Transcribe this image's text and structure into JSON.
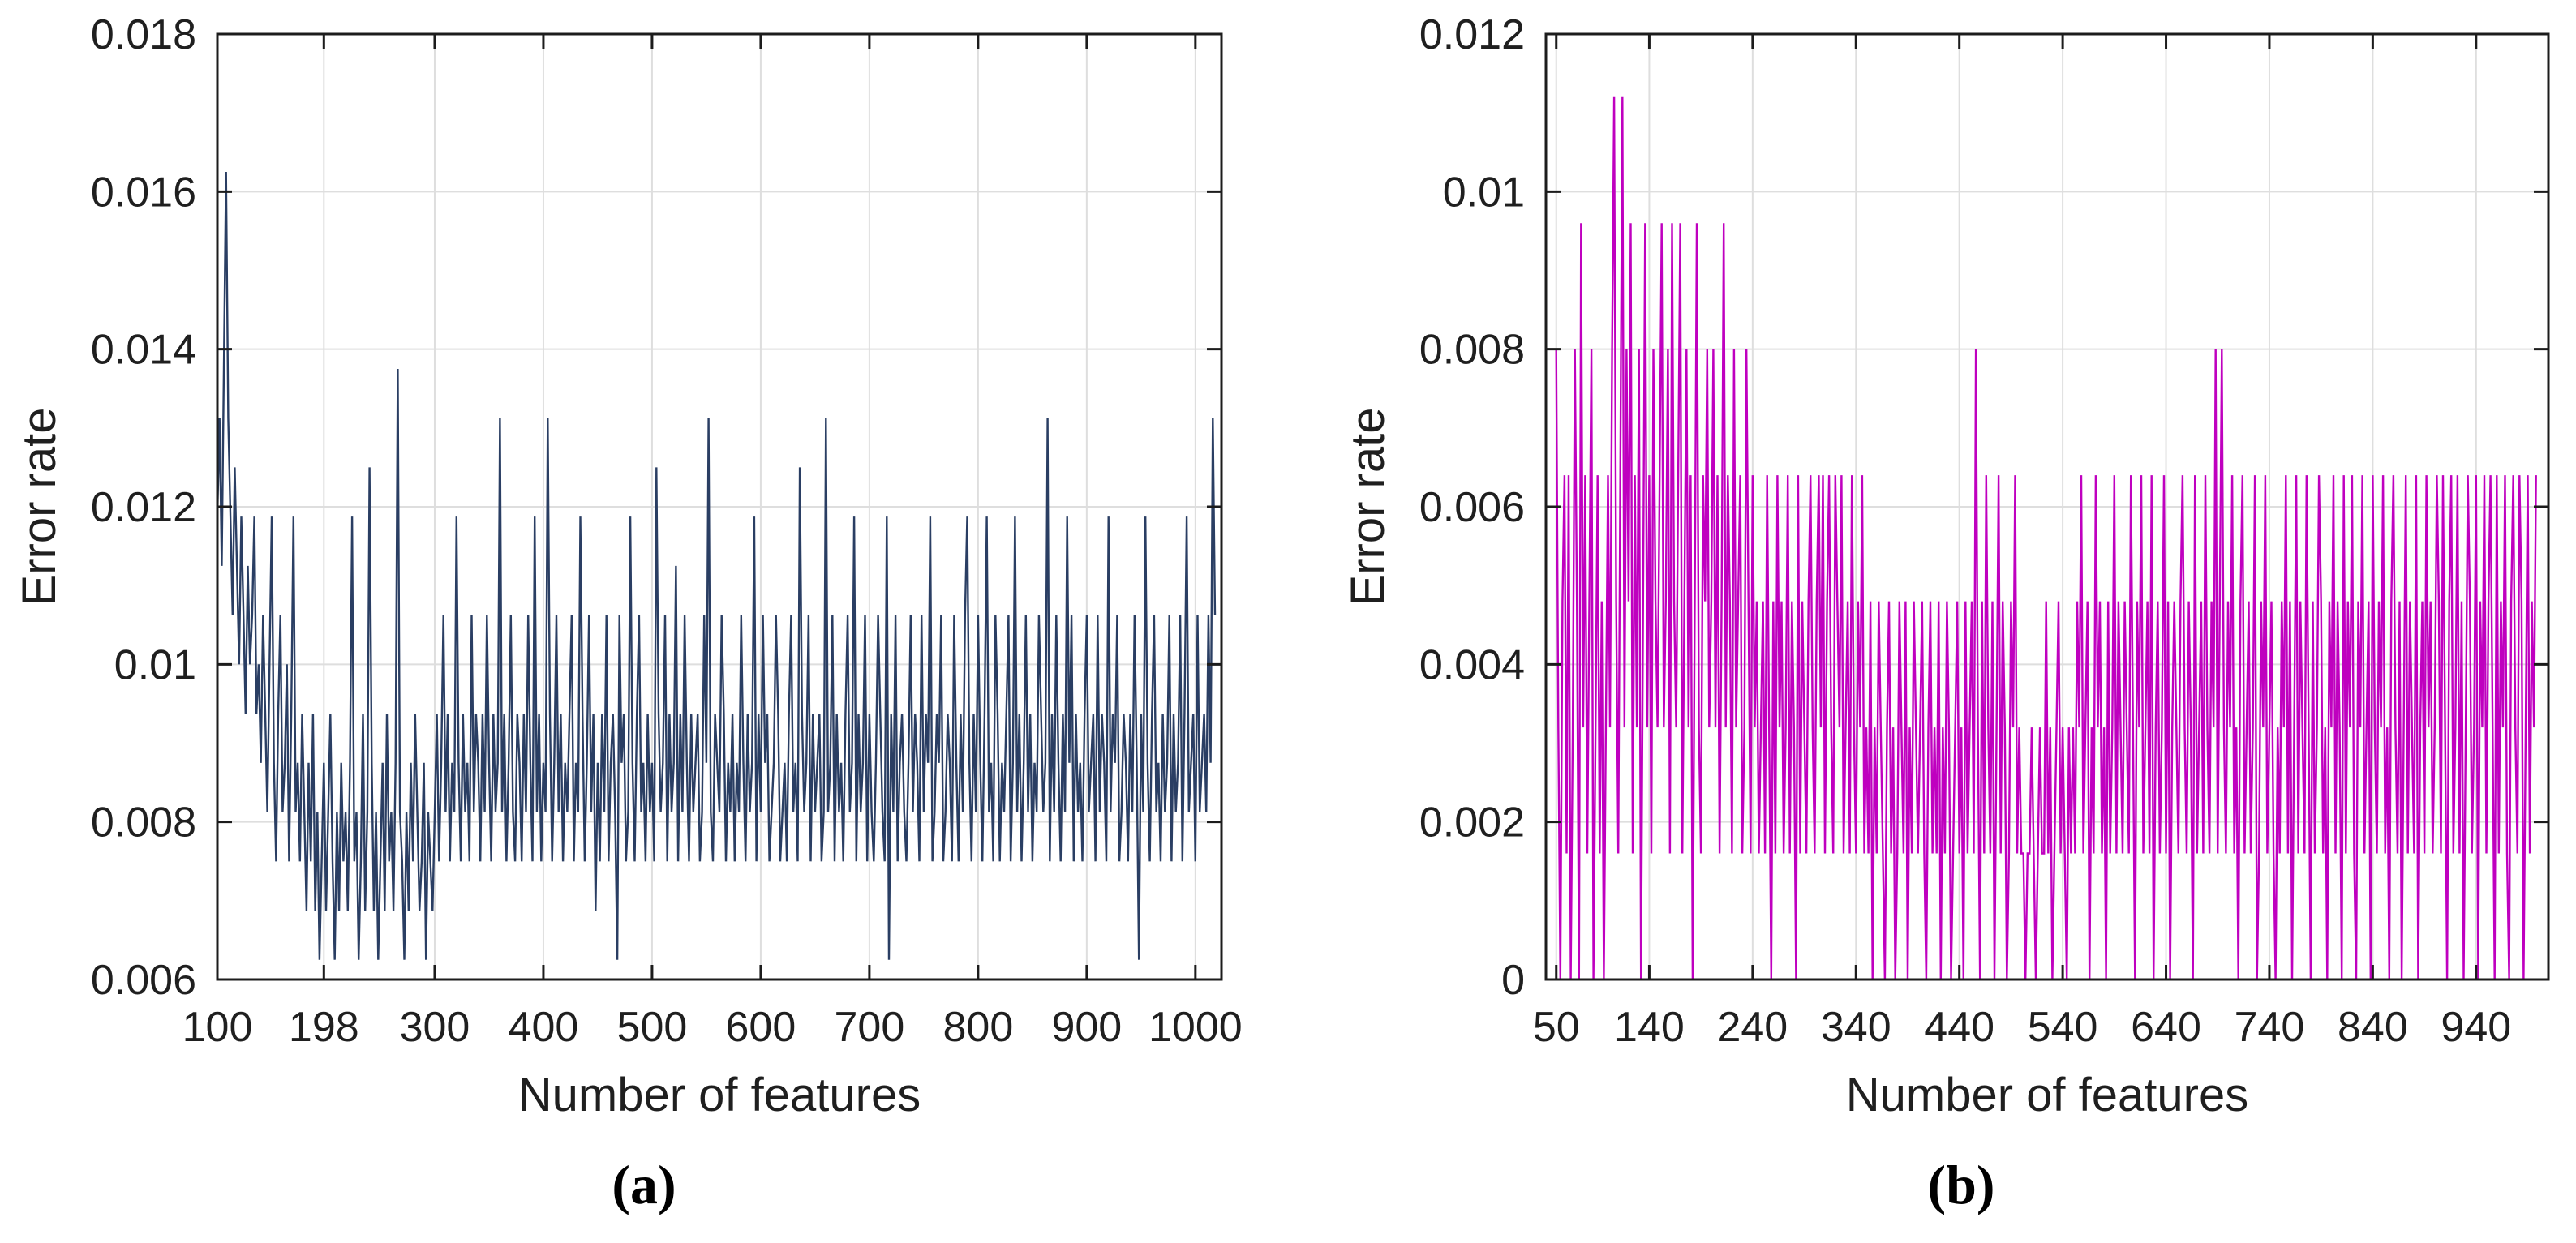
{
  "figure": {
    "background": "#ffffff",
    "panels": [
      {
        "id": "a",
        "caption": "(a)",
        "xlabel": "Number of features",
        "ylabel": "Error rate"
      },
      {
        "id": "b",
        "caption": "(b)",
        "xlabel": "Number of features",
        "ylabel": "Error rate"
      }
    ]
  },
  "colors": {
    "axis": "#1c1c1c",
    "grid": "#dedede",
    "tick_text": "#1f1f1f",
    "series_a": "#2a3e63",
    "series_b": "#bf00bf"
  },
  "chart_data": [
    {
      "type": "line",
      "title": "",
      "xlabel": "Number of features",
      "ylabel": "Error rate",
      "legend": null,
      "grid": true,
      "line_color": "#2a3e63",
      "xlim": [
        100,
        1024
      ],
      "ylim": [
        0.006,
        0.018
      ],
      "xticks": [
        100,
        198,
        300,
        400,
        500,
        600,
        700,
        800,
        900,
        1000
      ],
      "xtick_labels": [
        "100",
        "198",
        "300",
        "400",
        "500",
        "600",
        "700",
        "800",
        "900",
        "1000"
      ],
      "yticks": [
        0.006,
        0.008,
        0.01,
        0.012,
        0.014,
        0.016,
        0.018
      ],
      "ytick_labels": [
        "0.006",
        "0.008",
        "0.01",
        "0.012",
        "0.014",
        "0.016",
        "0.018"
      ],
      "series": {
        "name": "error-rate-vs-number-of-features",
        "x_start": 100,
        "x_step": 2,
        "denominator": 1600,
        "counts": [
          19,
          21,
          18,
          22,
          26,
          21,
          19,
          17,
          20,
          18,
          16,
          19,
          17,
          15,
          18,
          16,
          17,
          19,
          15,
          16,
          14,
          17,
          15,
          13,
          16,
          19,
          14,
          12,
          15,
          17,
          13,
          14,
          16,
          12,
          15,
          19,
          13,
          14,
          12,
          15,
          13,
          11,
          14,
          12,
          15,
          11,
          13,
          10,
          12,
          14,
          11,
          13,
          15,
          12,
          10,
          13,
          11,
          14,
          12,
          13,
          11,
          14,
          19,
          12,
          13,
          10,
          12,
          15,
          11,
          13,
          20,
          14,
          11,
          13,
          10,
          12,
          14,
          11,
          15,
          12,
          13,
          11,
          14,
          22,
          13,
          12,
          10,
          13,
          11,
          14,
          12,
          15,
          13,
          11,
          12,
          14,
          10,
          13,
          12,
          11,
          13,
          15,
          12,
          14,
          17,
          13,
          15,
          12,
          14,
          13,
          19,
          14,
          12,
          15,
          13,
          14,
          12,
          17,
          13,
          15,
          14,
          12,
          15,
          13,
          17,
          14,
          12,
          15,
          13,
          14,
          21,
          13,
          15,
          12,
          14,
          17,
          13,
          12,
          15,
          14,
          12,
          15,
          13,
          17,
          14,
          12,
          19,
          13,
          15,
          12,
          14,
          13,
          21,
          15,
          12,
          14,
          17,
          13,
          15,
          12,
          14,
          13,
          15,
          17,
          12,
          14,
          13,
          19,
          15,
          12,
          14,
          17,
          13,
          15,
          11,
          14,
          12,
          15,
          13,
          17,
          12,
          14,
          15,
          13,
          10,
          17,
          14,
          15,
          12,
          13,
          19,
          14,
          12,
          15,
          17,
          13,
          14,
          12,
          15,
          13,
          14,
          12,
          20,
          15,
          13,
          14,
          17,
          12,
          15,
          13,
          14,
          18,
          12,
          15,
          13,
          17,
          14,
          12,
          15,
          13,
          14,
          15,
          12,
          13,
          17,
          14,
          21,
          13,
          12,
          15,
          14,
          13,
          17,
          15,
          12,
          14,
          13,
          15,
          12,
          14,
          13,
          17,
          14,
          12,
          15,
          13,
          14,
          19,
          12,
          15,
          13,
          17,
          14,
          15,
          12,
          13,
          14,
          17,
          15,
          12,
          13,
          14,
          12,
          15,
          17,
          13,
          14,
          12,
          20,
          15,
          13,
          14,
          17,
          12,
          15,
          13,
          14,
          15,
          12,
          13,
          21,
          13,
          14,
          17,
          12,
          15,
          13,
          14,
          12,
          15,
          17,
          13,
          14,
          19,
          12,
          15,
          13,
          14,
          17,
          12,
          15,
          13,
          12,
          14,
          17,
          15,
          13,
          12,
          19,
          10,
          15,
          13,
          17,
          12,
          14,
          15,
          13,
          12,
          14,
          17,
          13,
          15,
          14,
          12,
          17,
          13,
          15,
          14,
          19,
          12,
          13,
          15,
          14,
          17,
          12,
          13,
          15,
          14,
          12,
          17,
          14,
          12,
          15,
          13,
          17,
          19,
          14,
          12,
          15,
          13,
          17,
          14,
          12,
          15,
          19,
          13,
          14,
          12,
          17,
          15,
          12,
          14,
          13,
          15,
          17,
          12,
          14,
          19,
          13,
          15,
          12,
          14,
          17,
          13,
          15,
          12,
          14,
          13,
          17,
          15,
          13,
          14,
          21,
          12,
          15,
          13,
          17,
          14,
          12,
          15,
          13,
          19,
          14,
          17,
          12,
          15,
          13,
          14,
          12,
          15,
          17,
          13,
          14,
          15,
          12,
          17,
          13,
          15,
          14,
          12,
          19,
          13,
          15,
          14,
          17,
          12,
          13,
          15,
          14,
          12,
          15,
          13,
          17,
          14,
          10,
          15,
          13,
          19,
          14,
          12,
          15,
          17,
          13,
          14,
          12,
          15,
          13,
          14,
          17,
          12,
          15,
          13,
          14,
          17,
          12,
          15,
          19,
          13,
          14,
          15,
          12,
          17,
          13,
          14,
          15,
          13,
          17,
          14,
          21,
          17
        ]
      }
    },
    {
      "type": "line",
      "title": "",
      "xlabel": "Number of features",
      "ylabel": "Error rate",
      "legend": null,
      "grid": true,
      "line_color": "#bf00bf",
      "xlim": [
        40,
        1010
      ],
      "ylim": [
        0,
        0.012
      ],
      "xticks": [
        50,
        140,
        240,
        340,
        440,
        540,
        640,
        740,
        840,
        940
      ],
      "xtick_labels": [
        "50",
        "140",
        "240",
        "340",
        "440",
        "540",
        "640",
        "740",
        "840",
        "940"
      ],
      "yticks": [
        0,
        0.002,
        0.004,
        0.006,
        0.008,
        0.01,
        0.012
      ],
      "ytick_labels": [
        "0",
        "0.002",
        "0.004",
        "0.006",
        "0.008",
        "0.01",
        "0.012"
      ],
      "series": {
        "name": "error-rate-vs-number-of-features",
        "x_start": 50,
        "x_step": 2,
        "denominator": 625,
        "counts": [
          5,
          2,
          0,
          3,
          4,
          1,
          4,
          0,
          2,
          5,
          3,
          0,
          6,
          2,
          4,
          1,
          3,
          5,
          0,
          2,
          4,
          1,
          3,
          0,
          2,
          4,
          2,
          5,
          7,
          3,
          1,
          4,
          7,
          2,
          5,
          3,
          6,
          1,
          4,
          2,
          5,
          0,
          3,
          6,
          2,
          4,
          1,
          5,
          3,
          2,
          4,
          6,
          2,
          3,
          5,
          1,
          6,
          3,
          2,
          4,
          6,
          1,
          3,
          5,
          2,
          4,
          0,
          3,
          6,
          2,
          1,
          4,
          3,
          5,
          2,
          3,
          5,
          2,
          4,
          1,
          3,
          6,
          2,
          4,
          3,
          1,
          5,
          2,
          3,
          4,
          1,
          2,
          5,
          3,
          1,
          4,
          2,
          3,
          1,
          2,
          3,
          1,
          4,
          2,
          0,
          3,
          1,
          4,
          2,
          3,
          1,
          2,
          4,
          1,
          3,
          2,
          0,
          4,
          1,
          3,
          2,
          1,
          3,
          4,
          2,
          1,
          3,
          4,
          2,
          4,
          1,
          3,
          4,
          2,
          1,
          4,
          3,
          2,
          4,
          1,
          2,
          3,
          1,
          4,
          2,
          1,
          3,
          2,
          4,
          1,
          2,
          1,
          3,
          0,
          2,
          1,
          3,
          2,
          1,
          0,
          2,
          3,
          1,
          2,
          0,
          1,
          3,
          2,
          1,
          3,
          0,
          2,
          1,
          3,
          2,
          1,
          2,
          3,
          1,
          0,
          2,
          3,
          1,
          2,
          1,
          3,
          0,
          2,
          1,
          3,
          2,
          0,
          1,
          2,
          3,
          1,
          2,
          0,
          3,
          1,
          2,
          3,
          1,
          5,
          2,
          0,
          3,
          1,
          4,
          2,
          1,
          3,
          0,
          2,
          4,
          1,
          3,
          2,
          0,
          1,
          3,
          2,
          4,
          1,
          2,
          1,
          1,
          0,
          1,
          1,
          2,
          1,
          0,
          1,
          2,
          1,
          1,
          3,
          1,
          2,
          0,
          1,
          2,
          3,
          1,
          2,
          1,
          0,
          2,
          1,
          2,
          1,
          3,
          2,
          4,
          1,
          2,
          3,
          0,
          2,
          1,
          4,
          2,
          3,
          1,
          2,
          0,
          3,
          1,
          2,
          4,
          1,
          3,
          2,
          1,
          3,
          2,
          1,
          4,
          2,
          0,
          3,
          2,
          4,
          1,
          2,
          3,
          1,
          4,
          0,
          2,
          3,
          1,
          2,
          4,
          1,
          3,
          0,
          2,
          3,
          2,
          1,
          3,
          4,
          2,
          1,
          3,
          2,
          0,
          4,
          1,
          2,
          3,
          1,
          4,
          2,
          1,
          3,
          2,
          5,
          1,
          3,
          5,
          2,
          1,
          3,
          2,
          4,
          1,
          2,
          0,
          3,
          4,
          1,
          2,
          3,
          1,
          2,
          4,
          0,
          1,
          3,
          2,
          4,
          1,
          2,
          3,
          1,
          0,
          2,
          1,
          3,
          2,
          4,
          1,
          3,
          0,
          2,
          4,
          1,
          3,
          2,
          1,
          4,
          2,
          0,
          3,
          1,
          2,
          4,
          3,
          1,
          2,
          0,
          3,
          2,
          4,
          1,
          3,
          2,
          0,
          4,
          1,
          3,
          2,
          4,
          1,
          0,
          3,
          2,
          4,
          1,
          2,
          3,
          0,
          4,
          2,
          1,
          3,
          2,
          4,
          1,
          2,
          0,
          3,
          4,
          2,
          1,
          3,
          0,
          2,
          4,
          1,
          3,
          2,
          1,
          4,
          0,
          2,
          3,
          1,
          4,
          2,
          3,
          1,
          2,
          4,
          3,
          1,
          4,
          2,
          0,
          3,
          4,
          1,
          2,
          4,
          1,
          3,
          0,
          2,
          4,
          3,
          1,
          2,
          4,
          0,
          3,
          2,
          4,
          1,
          3,
          4,
          2,
          0,
          4,
          1,
          3,
          2,
          4,
          1,
          0,
          3,
          4,
          2,
          1,
          4,
          3,
          0,
          2,
          4,
          1,
          3,
          2,
          4
        ]
      }
    }
  ]
}
